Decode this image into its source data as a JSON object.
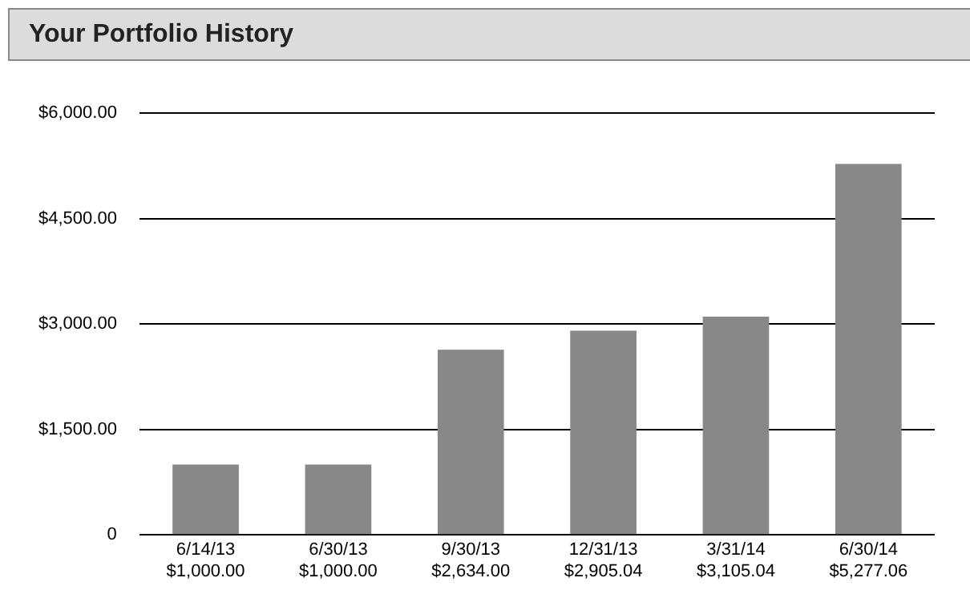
{
  "chart_data": {
    "type": "bar",
    "title": "Your Portfolio History",
    "categories": [
      "6/14/13",
      "6/30/13",
      "9/30/13",
      "12/31/13",
      "3/31/14",
      "6/30/14"
    ],
    "values": [
      1000,
      1000,
      2634,
      2905.04,
      3105.04,
      5277.06
    ],
    "value_labels": [
      "$1,000.00",
      "$1,000.00",
      "$2,634.00",
      "$2,905.04",
      "$3,105.04",
      "$5,277.06"
    ],
    "color": "#888888",
    "ylim": [
      0,
      6000
    ],
    "yticks": [
      {
        "value": 0,
        "label": "0"
      },
      {
        "value": 1500,
        "label": "$1,500.00"
      },
      {
        "value": 3000,
        "label": "$3,000.00"
      },
      {
        "value": 4500,
        "label": "$4,500.00"
      },
      {
        "value": 6000,
        "label": "$6,000.00"
      }
    ],
    "grid": "y",
    "legend": false
  }
}
